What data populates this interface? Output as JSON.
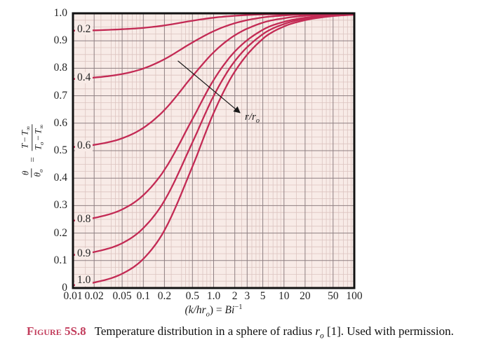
{
  "chart_data": {
    "type": "line",
    "title": "",
    "x_scale": "log",
    "xlabel": "(k/hr_o) = Bi^-1",
    "ylabel": "theta/theta_o = (T - T_inf)/(T_o - T_inf)",
    "xlim": [
      0.01,
      100
    ],
    "ylim": [
      0,
      1.0
    ],
    "grid": true,
    "legend": "none",
    "plot_bg": "#f8ebe7",
    "grid_minor_color": "#dcc4c0",
    "grid_major_color": "#8e7f82",
    "curve_color": "#c32a54",
    "border_color": "#121212",
    "x_tick_labels": [
      "0.01",
      "0.02",
      "0.05",
      "0.1",
      "0.2",
      "0.5",
      "1.0",
      "2",
      "3",
      "5",
      "10",
      "20",
      "50",
      "100"
    ],
    "x_tick_values": [
      0.01,
      0.02,
      0.05,
      0.1,
      0.2,
      0.5,
      1,
      2,
      3,
      5,
      10,
      20,
      50,
      100
    ],
    "y_tick_labels": [
      "1.0",
      "0.9",
      "0.8",
      "0.7",
      "0.6",
      "0.5",
      "0.4",
      "0.3",
      "0.2",
      "0.1",
      "0"
    ],
    "y_tick_values": [
      1.0,
      0.9,
      0.8,
      0.7,
      0.6,
      0.5,
      0.4,
      0.3,
      0.2,
      0.1,
      0
    ],
    "x": [
      0.01,
      0.02,
      0.05,
      0.1,
      0.2,
      0.5,
      1,
      2,
      5,
      10,
      20,
      50,
      100
    ],
    "series": [
      {
        "name": "r/r_o = 0.2",
        "label": "0.2",
        "values": [
          0.937,
          0.938,
          0.942,
          0.947,
          0.956,
          0.973,
          0.984,
          0.991,
          0.996,
          0.998,
          0.999,
          1.0,
          1.0
        ]
      },
      {
        "name": "r/r_o = 0.4",
        "label": "0.4",
        "values": [
          0.761,
          0.766,
          0.779,
          0.799,
          0.833,
          0.894,
          0.935,
          0.964,
          0.985,
          0.992,
          0.996,
          0.998,
          0.999
        ]
      },
      {
        "name": "r/r_o = 0.6",
        "label": "0.6",
        "values": [
          0.513,
          0.521,
          0.545,
          0.583,
          0.648,
          0.771,
          0.858,
          0.92,
          0.966,
          0.982,
          0.991,
          0.996,
          0.998
        ]
      },
      {
        "name": "r/r_o = 0.8",
        "label": "0.8",
        "values": [
          0.245,
          0.255,
          0.286,
          0.338,
          0.43,
          0.615,
          0.757,
          0.861,
          0.94,
          0.969,
          0.984,
          0.994,
          0.997
        ]
      },
      {
        "name": "r/r_o = 0.9",
        "label": "0.9",
        "values": [
          0.12,
          0.131,
          0.163,
          0.218,
          0.318,
          0.53,
          0.699,
          0.826,
          0.924,
          0.961,
          0.98,
          0.992,
          0.996
        ]
      },
      {
        "name": "r/r_o = 1.0",
        "label": "1.0",
        "values": [
          0.01,
          0.02,
          0.052,
          0.106,
          0.21,
          0.442,
          0.637,
          0.788,
          0.907,
          0.952,
          0.975,
          0.99,
          0.995
        ]
      }
    ],
    "annotation_arrow": {
      "x1": 0.31,
      "y1": 0.827,
      "x2": 2.37,
      "y2": 0.638,
      "label": "r/r_o"
    }
  },
  "labels": {
    "y_axis": {
      "theta": "θ",
      "sub_o": "o",
      "eq": "=",
      "T": "T",
      "minus": "−",
      "inf": "∞"
    },
    "x_axis": {
      "lhs": "(k/hr",
      "sub_o": "o",
      "mid": ") = ",
      "bi": "Bi",
      "sup": "−1"
    },
    "arrow": {
      "base": "r/r",
      "sub": "o"
    }
  },
  "caption": {
    "label": "Figure 5S.8",
    "text": "Temperature distribution in a sphere of radius ",
    "r": "r",
    "r_sub": "o",
    "tail": " [1]. Used with permission."
  }
}
